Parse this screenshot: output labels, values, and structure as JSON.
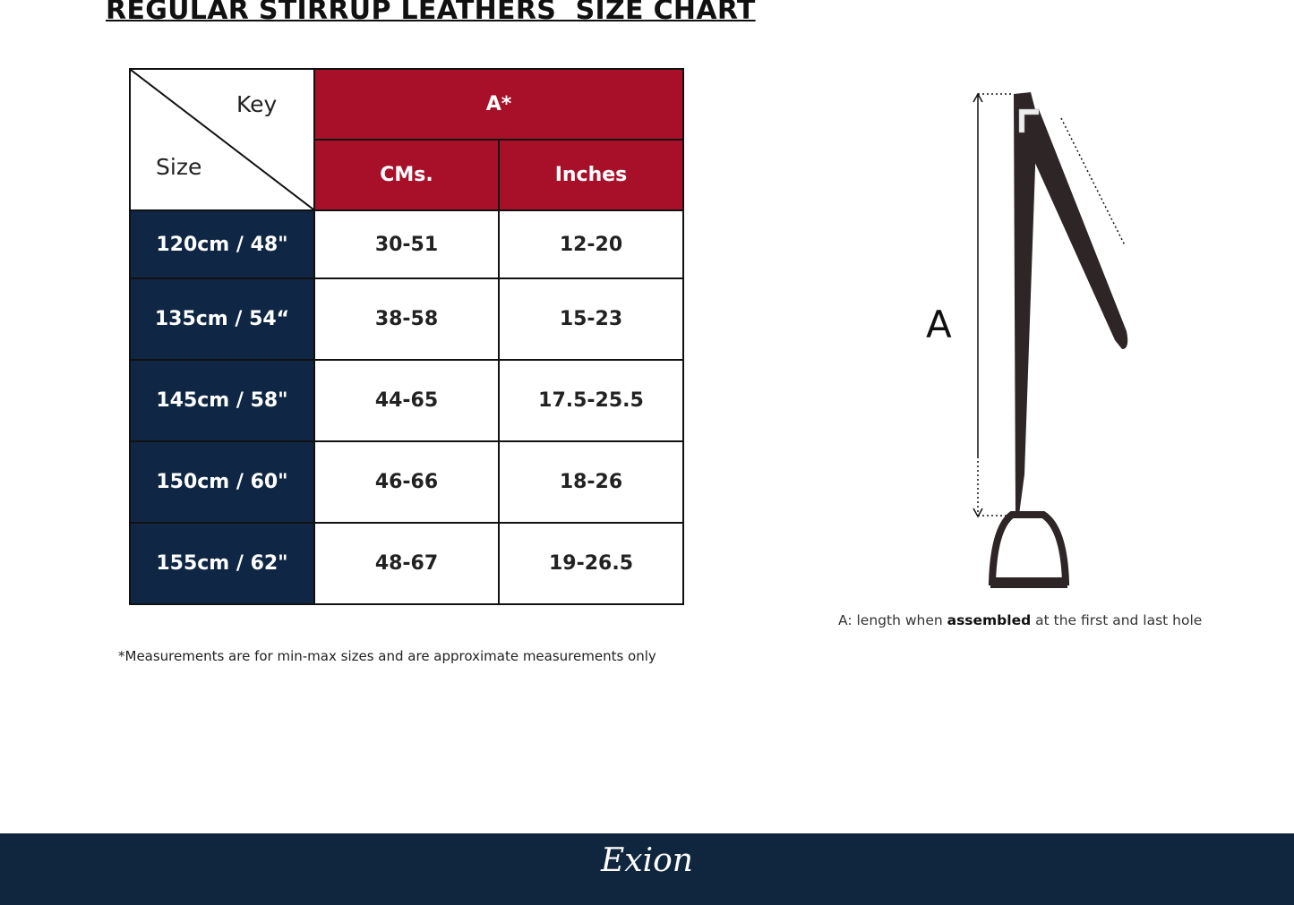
{
  "title": "REGULAR STIRRUP LEATHERS  SIZE CHART",
  "table": {
    "corner_key": "Key",
    "corner_size": "Size",
    "group_header": "A*",
    "columns": [
      "CMs.",
      "Inches"
    ],
    "rows": [
      {
        "size": "120cm / 48\"",
        "cms": "30-51",
        "inches": "12-20"
      },
      {
        "size": "135cm / 54“",
        "cms": "38-58",
        "inches": "15-23"
      },
      {
        "size": "145cm / 58\"",
        "cms": "44-65",
        "inches": "17.5-25.5"
      },
      {
        "size": "150cm / 60\"",
        "cms": "46-66",
        "inches": "18-26"
      },
      {
        "size": "155cm / 62\"",
        "cms": "48-67",
        "inches": "19-26.5"
      }
    ]
  },
  "note": "*Measurements are for min-max sizes and are approximate measurements only",
  "diagram": {
    "label": "A"
  },
  "caption": {
    "prefix": "A: length when ",
    "bold": "assembled",
    "suffix": " at the first and last hole"
  },
  "footer": {
    "logo": "Exion"
  },
  "colors": {
    "header_red": "#a8102a",
    "navy": "#0f2744",
    "leather": "#2e2626"
  }
}
